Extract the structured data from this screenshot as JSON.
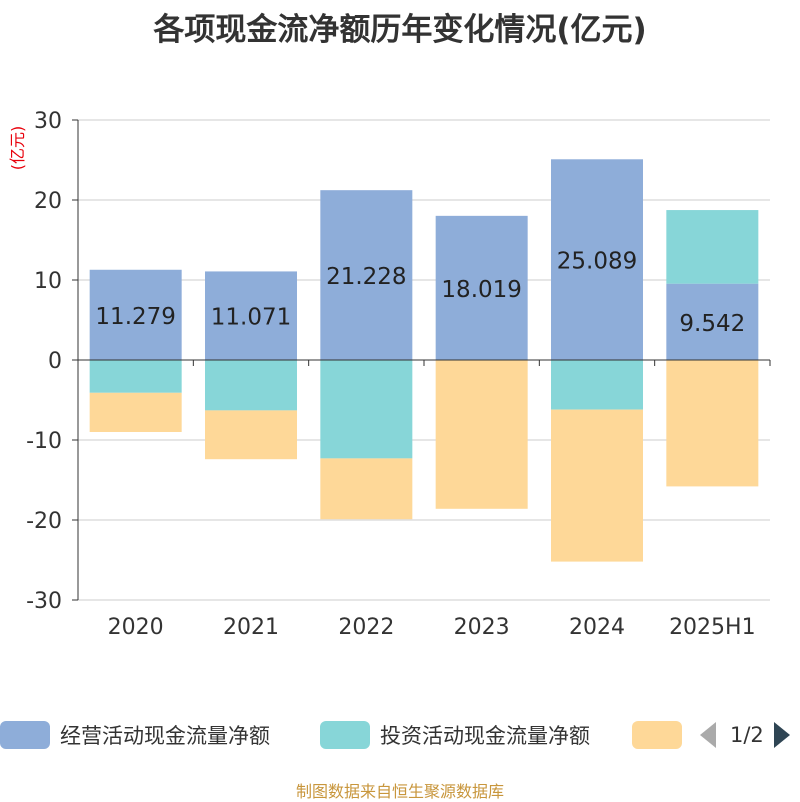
{
  "title": "各项现金流净额历年变化情况(亿元)",
  "source": "制图数据来自恒生聚源数据库",
  "chart_data": {
    "type": "bar",
    "stacked": true,
    "categories": [
      "2020",
      "2021",
      "2022",
      "2023",
      "2024",
      "2025H1"
    ],
    "ylabel": "(亿元)",
    "ylim": [
      -30,
      30
    ],
    "yticks": [
      30,
      20,
      10,
      0,
      -10,
      -20,
      -30
    ],
    "grid": true,
    "legend_position": "bottom",
    "series": [
      {
        "name": "经营活动现金流量净额",
        "color": "#8eadd9",
        "values": [
          11.279,
          11.071,
          21.228,
          18.019,
          25.089,
          9.542
        ],
        "labels": [
          "11.279",
          "11.071",
          "21.228",
          "18.019",
          "25.089",
          "9.542"
        ]
      },
      {
        "name": "投资活动现金流量净额",
        "color": "#87d6d8",
        "values": [
          -4.1,
          -6.3,
          -12.3,
          0,
          -6.2,
          9.2
        ]
      },
      {
        "name": "",
        "color": "#fed898",
        "values": [
          -4.9,
          -6.1,
          -7.6,
          -18.6,
          -19.0,
          -15.8
        ]
      }
    ]
  },
  "legend": {
    "items": [
      {
        "label": "经营活动现金流量净额",
        "color": "#8eadd9"
      },
      {
        "label": "投资活动现金流量净额",
        "color": "#87d6d8"
      },
      {
        "label": "",
        "color": "#fed898"
      }
    ],
    "page": "1/2"
  }
}
